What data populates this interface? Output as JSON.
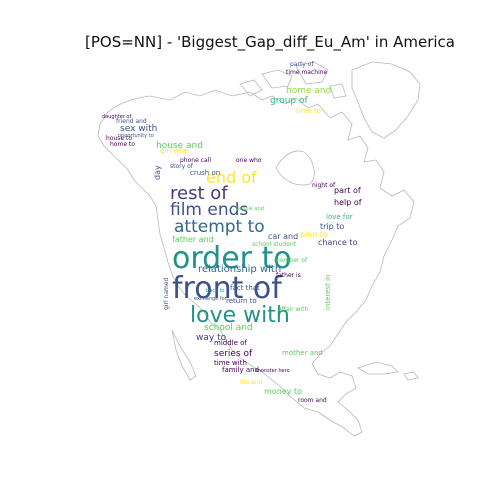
{
  "title": "[POS=NN] - 'Biggest_Gap_diff_Eu_Am' in America",
  "palette": [
    "#440154",
    "#3b528b",
    "#21918c",
    "#5ec962",
    "#fde725",
    "#31688e",
    "#35b779",
    "#443983",
    "#90d743",
    "#287c8e"
  ],
  "words": [
    {
      "text": "order to",
      "weight": 1.0,
      "color": "#21918c"
    },
    {
      "text": "front of",
      "weight": 0.92,
      "color": "#3b528b"
    },
    {
      "text": "love with",
      "weight": 0.78,
      "color": "#21918c"
    },
    {
      "text": "rest of",
      "weight": 0.62,
      "color": "#443983"
    },
    {
      "text": "attempt to",
      "weight": 0.6,
      "color": "#31688e"
    },
    {
      "text": "film ends",
      "weight": 0.56,
      "color": "#3b528b"
    },
    {
      "text": "end of",
      "weight": 0.5,
      "color": "#fde725"
    },
    {
      "text": "relationship with",
      "weight": 0.3,
      "color": "#31688e"
    },
    {
      "text": "school and",
      "weight": 0.26,
      "color": "#5ec962"
    },
    {
      "text": "way to",
      "weight": 0.25,
      "color": "#443983"
    },
    {
      "text": "series of",
      "weight": 0.24,
      "color": "#440154"
    },
    {
      "text": "sex with",
      "weight": 0.24,
      "color": "#3b528b"
    },
    {
      "text": "house and",
      "weight": 0.22,
      "color": "#5ec962"
    },
    {
      "text": "group of",
      "weight": 0.22,
      "color": "#35b779"
    },
    {
      "text": "home and",
      "weight": 0.2,
      "color": "#90d743"
    },
    {
      "text": "part of",
      "weight": 0.2,
      "color": "#440154"
    },
    {
      "text": "help of",
      "weight": 0.2,
      "color": "#440154"
    },
    {
      "text": "trip to",
      "weight": 0.2,
      "color": "#3b528b"
    },
    {
      "text": "plan to",
      "weight": 0.18,
      "color": "#fde725"
    },
    {
      "text": "money to",
      "weight": 0.2,
      "color": "#5ec962"
    },
    {
      "text": "car and",
      "weight": 0.18,
      "color": "#3b528b"
    },
    {
      "text": "chance to",
      "weight": 0.18,
      "color": "#443983"
    },
    {
      "text": "father and",
      "weight": 0.2,
      "color": "#5ec962"
    },
    {
      "text": "middle of",
      "weight": 0.17,
      "color": "#440154"
    },
    {
      "text": "time with",
      "weight": 0.16,
      "color": "#440154"
    },
    {
      "text": "family and",
      "weight": 0.16,
      "color": "#440154"
    },
    {
      "text": "fact that",
      "weight": 0.16,
      "color": "#3b528b"
    },
    {
      "text": "return to",
      "weight": 0.16,
      "color": "#3b528b"
    },
    {
      "text": "mother and",
      "weight": 0.15,
      "color": "#5ec962"
    },
    {
      "text": "crush on",
      "weight": 0.16,
      "color": "#3b528b"
    },
    {
      "text": "girl who",
      "weight": 0.16,
      "color": "#fde725"
    },
    {
      "text": "time to",
      "weight": 0.16,
      "color": "#fde725"
    },
    {
      "text": "love for",
      "weight": 0.14,
      "color": "#35b779"
    },
    {
      "text": "night of",
      "weight": 0.13,
      "color": "#440154"
    },
    {
      "text": "room and",
      "weight": 0.13,
      "color": "#440154"
    },
    {
      "text": "affair with",
      "weight": 0.13,
      "color": "#5ec962"
    },
    {
      "text": "interest in",
      "weight": 0.13,
      "color": "#5ec962"
    },
    {
      "text": "phone call",
      "weight": 0.12,
      "color": "#440154"
    },
    {
      "text": "one who",
      "weight": 0.12,
      "color": "#440154"
    },
    {
      "text": "father is",
      "weight": 0.12,
      "color": "#440154"
    },
    {
      "text": "school student",
      "weight": 0.12,
      "color": "#5ec962"
    },
    {
      "text": "friend and",
      "weight": 0.12,
      "color": "#3b528b"
    },
    {
      "text": "house to",
      "weight": 0.12,
      "color": "#440154"
    },
    {
      "text": "story of",
      "weight": 0.11,
      "color": "#3b528b"
    },
    {
      "text": "time machine",
      "weight": 0.11,
      "color": "#440154"
    },
    {
      "text": "party of",
      "weight": 0.11,
      "color": "#3b528b"
    },
    {
      "text": "life and",
      "weight": 0.11,
      "color": "#fde725"
    },
    {
      "text": "girl named",
      "weight": 0.11,
      "color": "#3b528b"
    },
    {
      "text": "member of",
      "weight": 0.1,
      "color": "#5ec962"
    },
    {
      "text": "day",
      "weight": 0.14,
      "color": "#3b528b"
    },
    {
      "text": "home to",
      "weight": 0.1,
      "color": "#440154"
    },
    {
      "text": "opportunity to",
      "weight": 0.1,
      "color": "#3b528b"
    },
    {
      "text": "exchange for",
      "weight": 0.1,
      "color": "#3b528b"
    },
    {
      "text": "daughter of",
      "weight": 0.09,
      "color": "#440154"
    },
    {
      "text": "monster hero",
      "weight": 0.09,
      "color": "#440154"
    },
    {
      "text": "back to",
      "weight": 0.09,
      "color": "#21918c"
    },
    {
      "text": "people and",
      "weight": 0.09,
      "color": "#5ec962"
    }
  ]
}
